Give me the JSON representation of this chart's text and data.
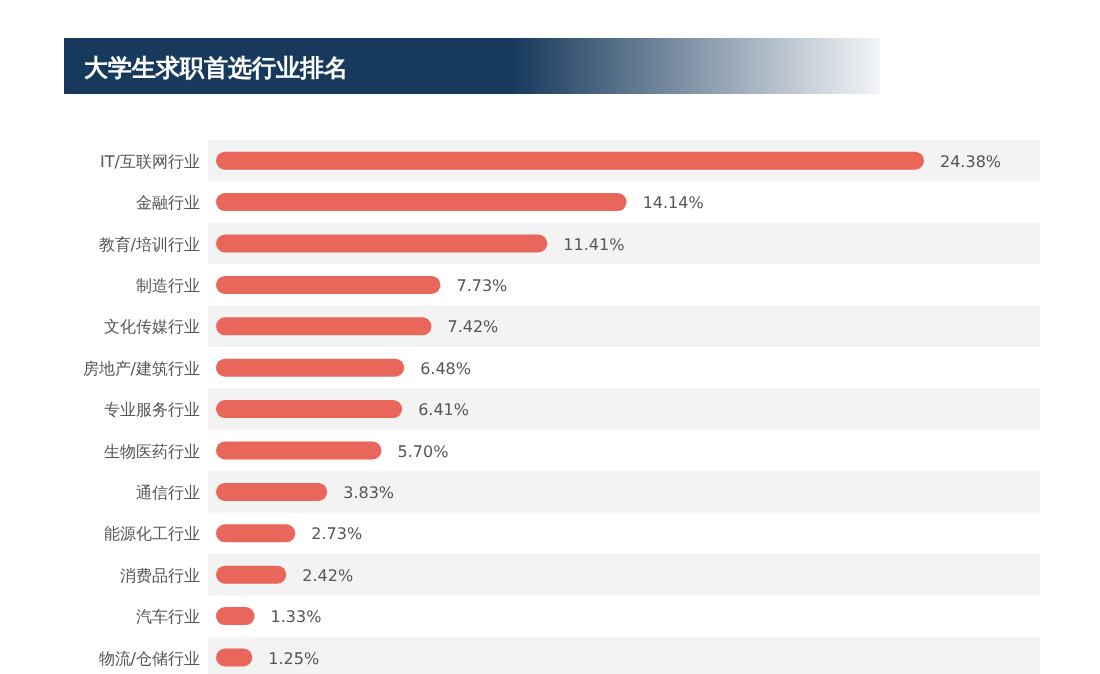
{
  "chart_data": {
    "type": "bar",
    "orientation": "horizontal",
    "title": "大学生求职首选行业排名",
    "categories": [
      "IT/互联网行业",
      "金融行业",
      "教育/培训行业",
      "制造行业",
      "文化传媒行业",
      "房地产/建筑行业",
      "专业服务行业",
      "生物医药行业",
      "通信行业",
      "能源化工行业",
      "消费品行业",
      "汽车行业",
      "物流/仓储行业"
    ],
    "values": [
      24.38,
      14.14,
      11.41,
      7.73,
      7.42,
      6.48,
      6.41,
      5.7,
      3.83,
      2.73,
      2.42,
      1.33,
      1.25
    ],
    "value_labels": [
      "24.38%",
      "14.14%",
      "11.41%",
      "7.73%",
      "7.42%",
      "6.48%",
      "6.41%",
      "5.70%",
      "3.83%",
      "2.73%",
      "2.42%",
      "1.33%",
      "1.25%"
    ],
    "color": "#e8665a"
  }
}
